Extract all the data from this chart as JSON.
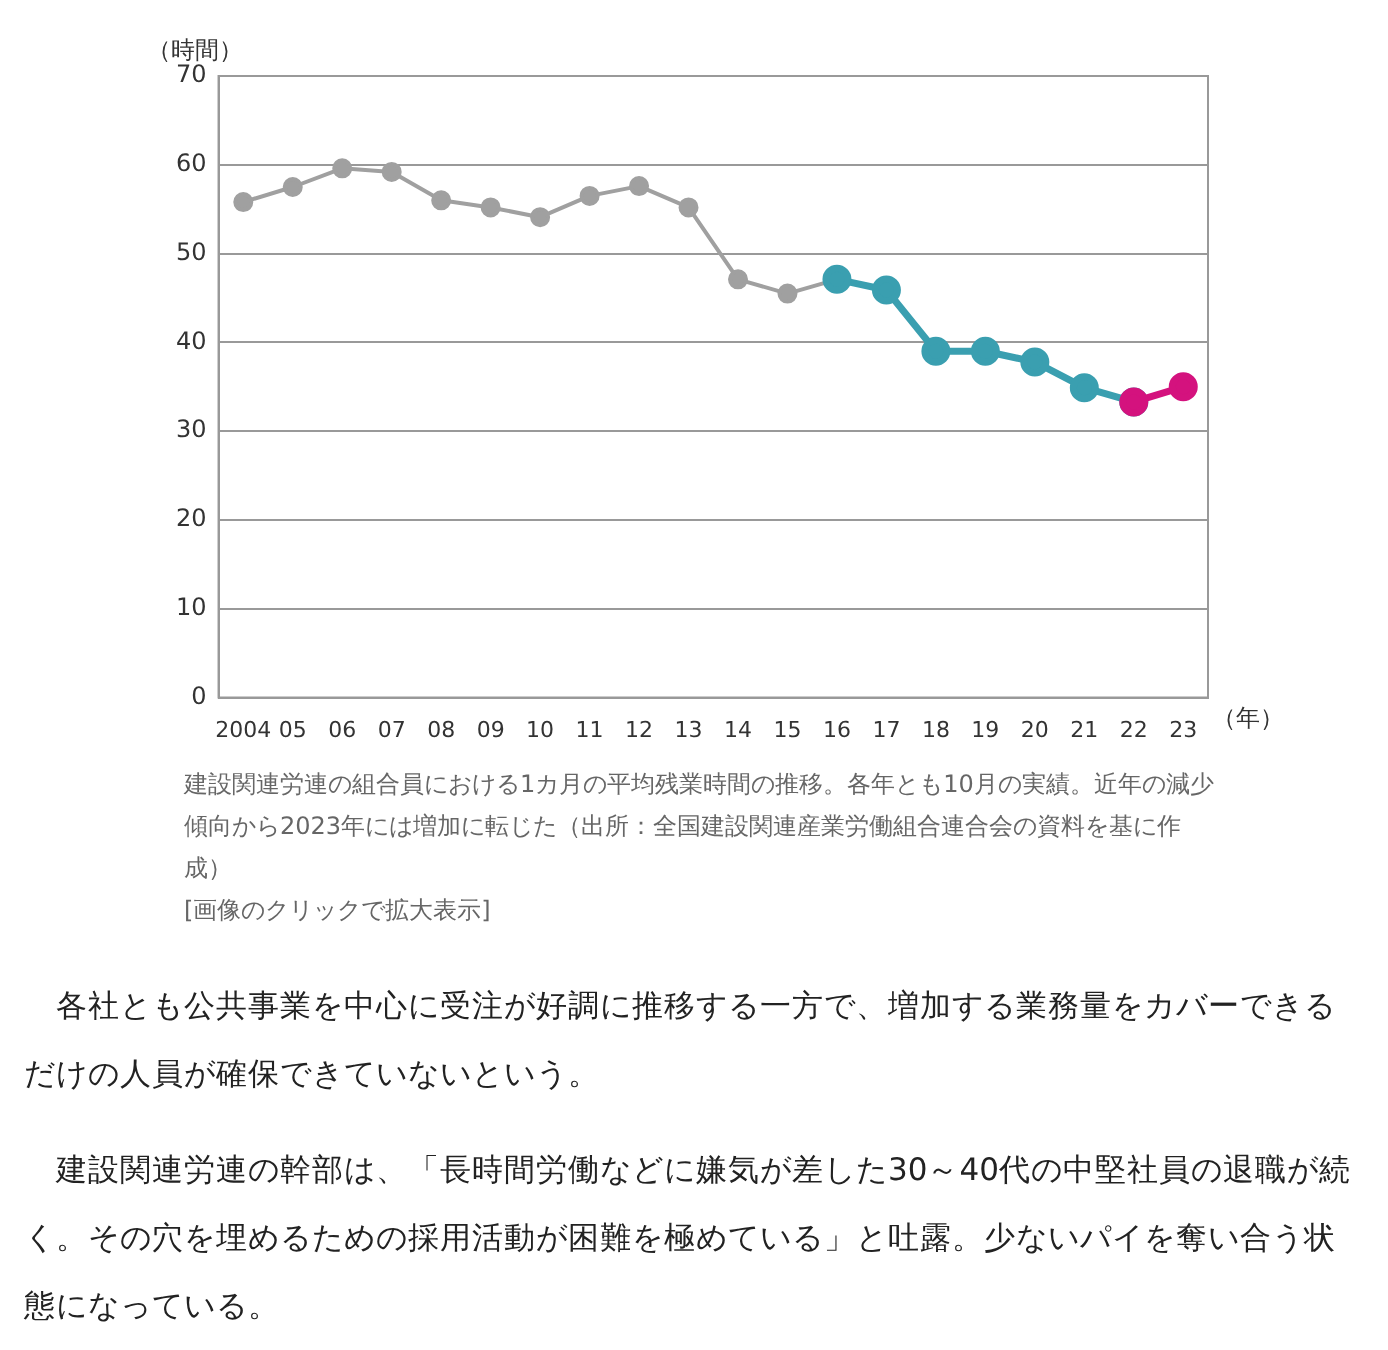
{
  "chart_data": {
    "type": "line",
    "categories": [
      "2004",
      "05",
      "06",
      "07",
      "08",
      "09",
      "10",
      "11",
      "12",
      "13",
      "14",
      "15",
      "16",
      "17",
      "18",
      "19",
      "20",
      "21",
      "22",
      "23"
    ],
    "series": [
      {
        "color": "#a0a0a0",
        "values": [
          55.8,
          57.5,
          59.6,
          59.2,
          56.0,
          55.2,
          54.1,
          56.5,
          57.6,
          55.2,
          47.1,
          45.5,
          47.1,
          null,
          null,
          null,
          null,
          null,
          null,
          null
        ]
      },
      {
        "color": "#3a9fb0",
        "values": [
          null,
          null,
          null,
          null,
          null,
          null,
          null,
          null,
          null,
          null,
          null,
          null,
          47.1,
          45.9,
          39.0,
          39.0,
          37.8,
          34.9,
          33.3,
          null
        ]
      },
      {
        "color": "#d4127e",
        "values": [
          null,
          null,
          null,
          null,
          null,
          null,
          null,
          null,
          null,
          null,
          null,
          null,
          null,
          null,
          null,
          null,
          null,
          null,
          33.3,
          35.0
        ]
      }
    ],
    "ylabel": "（時間）",
    "xlabel": "（年）",
    "ylim": [
      0,
      70
    ],
    "yticks": [
      0,
      10,
      20,
      30,
      40,
      50,
      60,
      70
    ],
    "grid": "y",
    "legend": false,
    "marker": "circle",
    "line_style": "solid",
    "annotations": [
      "建設関連労連の組合員における1カ月の平均残業時間の推移。各年とも10月の実績。近年の減少傾向から2023年には増加に転じた（出所：全国建設関連産業労働組合連合会の資料を基に作成）",
      "[画像のクリックで拡大表示]",
      "　各社とも公共事業を中心に受注が好調に推移する一方で、増加する業務量をカバーできるだけの人員が確保できていないという。",
      "　建設関連労連の幹部は、「長時間労働などに嫌気が差した30～40代の中堅社員の退職が続く。その穴を埋めるための採用活動が困難を極めている」と吐露。少ないパイを奪い合う状態になっている。"
    ]
  }
}
